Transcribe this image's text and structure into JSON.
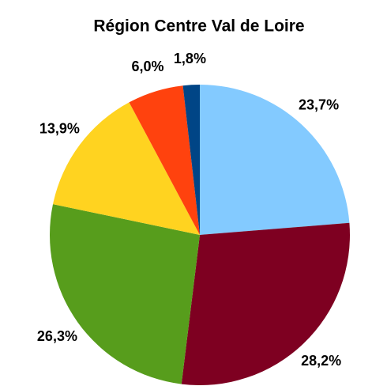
{
  "chart_data": {
    "type": "pie",
    "title": "Région Centre Val de Loire",
    "categories": [
      null,
      null,
      null,
      null,
      null,
      null
    ],
    "values": [
      23.7,
      28.2,
      26.3,
      13.9,
      6.0,
      1.8
    ],
    "value_labels": [
      "23,7%",
      "28,2%",
      "26,3%",
      "13,9%",
      "6,0%",
      "1,8%"
    ],
    "colors": [
      "#83caff",
      "#7e0021",
      "#579d1c",
      "#ffd320",
      "#ff420e",
      "#004586"
    ]
  }
}
